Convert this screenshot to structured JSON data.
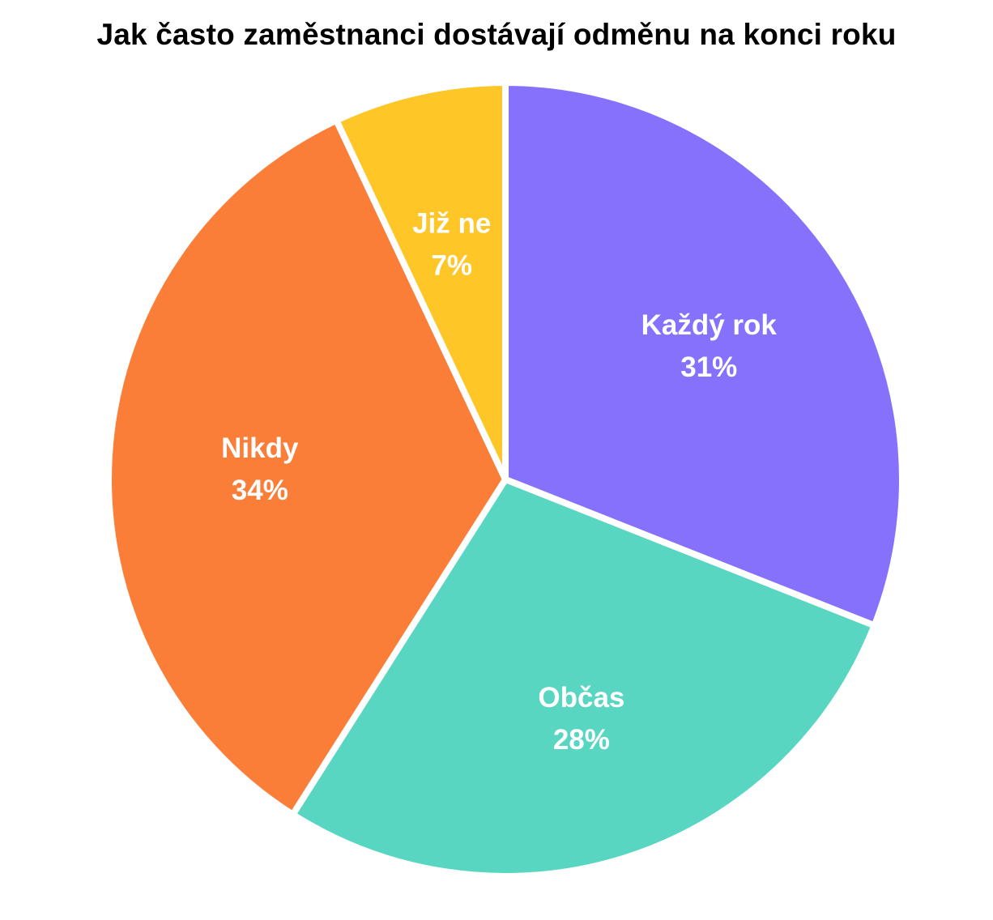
{
  "chart_data": {
    "type": "pie",
    "title": "Jak často zaměstnanci dostávají odměnu na konci roku",
    "slices": [
      {
        "label": "Každý rok",
        "value": 31,
        "value_label": "31%",
        "color": "#8571FC"
      },
      {
        "label": "Občas",
        "value": 28,
        "value_label": "28%",
        "color": "#58D6C1"
      },
      {
        "label": "Nikdy",
        "value": 34,
        "value_label": "34%",
        "color": "#FB7E38"
      },
      {
        "label": "Již ne",
        "value": 7,
        "value_label": "7%",
        "color": "#FEC627"
      }
    ],
    "start_angle": "top",
    "direction": "clockwise",
    "legend": "none"
  }
}
